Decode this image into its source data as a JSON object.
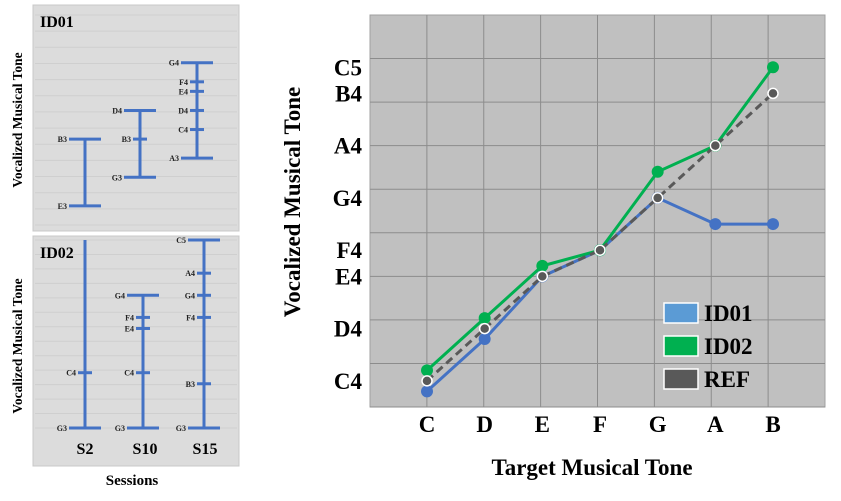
{
  "left_panels": {
    "ylabel": "Vocalized Musical Tone",
    "xlabel": "Sessions",
    "sessions": [
      "S2",
      "S10",
      "S15"
    ],
    "panels": [
      {
        "id": "ID01",
        "ranges": [
          {
            "session": "S2",
            "low": "E3",
            "high": "B3",
            "ticks": [
              "E3",
              "B3"
            ]
          },
          {
            "session": "S10",
            "low": "G3",
            "high": "D4",
            "ticks": [
              "G3",
              "B3",
              "D4"
            ]
          },
          {
            "session": "S15",
            "low": "A3",
            "high": "G4",
            "ticks": [
              "A3",
              "C4",
              "D4",
              "E4",
              "F4",
              "G4"
            ]
          }
        ]
      },
      {
        "id": "ID02",
        "ranges": [
          {
            "session": "S2",
            "low": "G3",
            "high": "C5",
            "ticks": [
              "G3",
              "C4"
            ]
          },
          {
            "session": "S10",
            "low": "G3",
            "high": "G4",
            "ticks": [
              "G3",
              "C4",
              "E4",
              "F4",
              "G4"
            ]
          },
          {
            "session": "S15",
            "low": "G3",
            "high": "C5",
            "ticks": [
              "G3",
              "B3",
              "F4",
              "G4",
              "A4",
              "C5"
            ]
          }
        ]
      }
    ]
  },
  "chart_data": {
    "type": "line",
    "xlabel": "Target Musical Tone",
    "ylabel": "Vocalized Musical Tone",
    "categories": [
      "C",
      "D",
      "E",
      "F",
      "G",
      "A",
      "B"
    ],
    "y_tick_labels": [
      "C4",
      "D4",
      "E4",
      "F4",
      "G4",
      "A4",
      "B4",
      "C5"
    ],
    "y_range": [
      "C4",
      "C5"
    ],
    "grid": true,
    "legend_position": "bottom-right",
    "series": [
      {
        "name": "ID01",
        "color": "#4472c4",
        "legend_color": "#5b9bd5",
        "style": "solid",
        "values": [
          "C4-",
          "D4-",
          "E4",
          "F4",
          "G4",
          "F#4",
          "F#4"
        ]
      },
      {
        "name": "ID02",
        "color": "#00b050",
        "legend_color": "#00b050",
        "style": "solid",
        "values": [
          "C4+",
          "D4+",
          "E4+",
          "F4",
          "G#4",
          "A4",
          "C5"
        ]
      },
      {
        "name": "REF",
        "color": "#595959",
        "legend_color": "#595959",
        "style": "dashed",
        "values": [
          "C4",
          "D4",
          "E4",
          "F4",
          "G4",
          "A4",
          "B4"
        ]
      }
    ]
  }
}
